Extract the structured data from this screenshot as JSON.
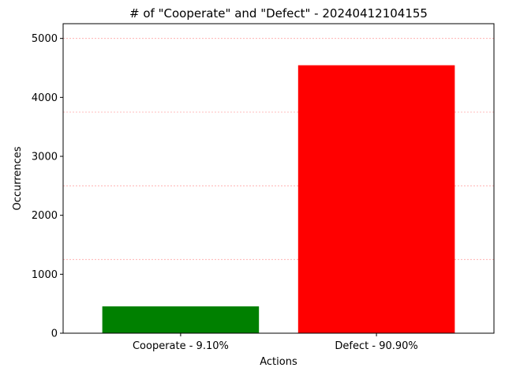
{
  "chart_data": {
    "type": "bar",
    "title": "# of \"Cooperate\" and \"Defect\" - 20240412104155",
    "xlabel": "Actions",
    "ylabel": "Occurrences",
    "categories": [
      "Cooperate - 9.10%",
      "Defect - 90.90%"
    ],
    "values": [
      455,
      4545
    ],
    "colors": [
      "#008000",
      "#ff0000"
    ],
    "ylim": [
      0,
      5250
    ],
    "yticks": [
      0,
      1000,
      2000,
      3000,
      4000,
      5000
    ],
    "gridlines_y": [
      1250,
      2500,
      3750,
      5000
    ],
    "grid": true,
    "grid_color": "#ff0000",
    "grid_style": "dashed"
  }
}
